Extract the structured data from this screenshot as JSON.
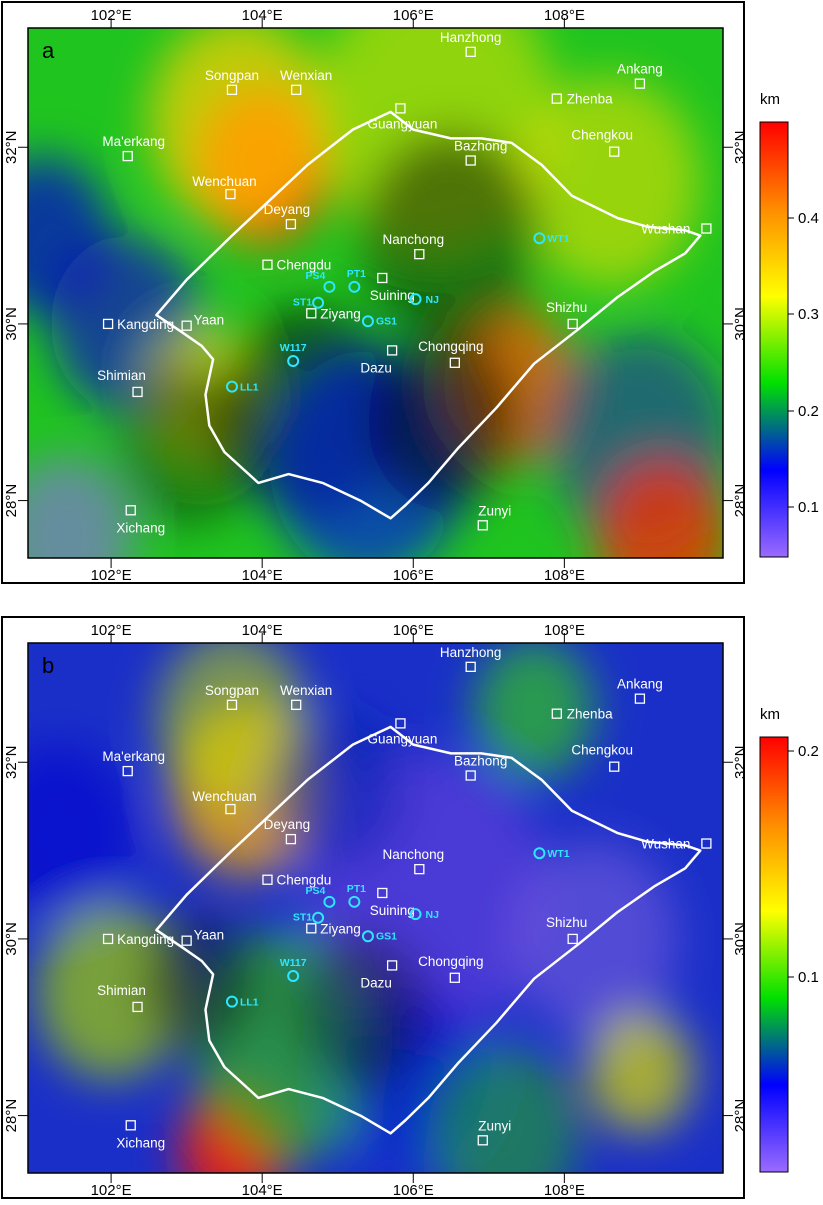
{
  "panels": [
    {
      "letter": "a",
      "colorbar": {
        "unit": "km",
        "ticks": [
          "0.4",
          "0.3",
          "0.2",
          "0.1"
        ],
        "colors": [
          "#ff0000",
          "#ff8c00",
          "#ffff00",
          "#00e000",
          "#0000ff",
          "#9b6bff"
        ]
      },
      "blobs": [
        {
          "x": 104.0,
          "y": 31.8,
          "r": 0.9,
          "c": "#ff3000",
          "o": 0.9
        },
        {
          "x": 103.7,
          "y": 32.3,
          "r": 1.2,
          "c": "#ffd000",
          "o": 0.7
        },
        {
          "x": 106.3,
          "y": 32.4,
          "r": 1.6,
          "c": "#d8e000",
          "o": 0.6
        },
        {
          "x": 108.6,
          "y": 31.6,
          "r": 1.2,
          "c": "#e8e000",
          "o": 0.6
        },
        {
          "x": 101.1,
          "y": 31.0,
          "r": 0.9,
          "c": "#0000d0",
          "o": 0.7
        },
        {
          "x": 102.2,
          "y": 30.0,
          "r": 1.0,
          "c": "#1010c0",
          "o": 0.7
        },
        {
          "x": 103.2,
          "y": 29.2,
          "r": 0.8,
          "c": "#ffe000",
          "o": 0.6
        },
        {
          "x": 104.6,
          "y": 29.0,
          "r": 1.2,
          "c": "#000000",
          "o": 0.55
        },
        {
          "x": 105.4,
          "y": 28.4,
          "r": 1.3,
          "c": "#0010f0",
          "o": 0.65
        },
        {
          "x": 107.3,
          "y": 29.3,
          "r": 0.9,
          "c": "#ff5000",
          "o": 0.7
        },
        {
          "x": 106.4,
          "y": 28.9,
          "r": 1.0,
          "c": "#000000",
          "o": 0.5
        },
        {
          "x": 109.0,
          "y": 28.7,
          "r": 1.2,
          "c": "#2020b0",
          "o": 0.55
        },
        {
          "x": 109.3,
          "y": 27.6,
          "r": 0.9,
          "c": "#ff2a00",
          "o": 0.75
        },
        {
          "x": 101.4,
          "y": 27.6,
          "r": 0.9,
          "c": "#8a70e0",
          "o": 0.65
        },
        {
          "x": 106.5,
          "y": 31.0,
          "r": 1.2,
          "c": "#000000",
          "o": 0.45
        },
        {
          "x": 103.0,
          "y": 28.6,
          "r": 0.9,
          "c": "#000000",
          "o": 0.4
        }
      ]
    },
    {
      "letter": "b",
      "colorbar": {
        "unit": "km",
        "ticks": [
          "0.2",
          "0.1"
        ],
        "colors": [
          "#ff0000",
          "#ff8c00",
          "#ffff00",
          "#00e000",
          "#0000ff",
          "#9b6bff"
        ]
      },
      "blobs": [
        {
          "x": 103.8,
          "y": 31.7,
          "r": 1.0,
          "c": "#ffb000",
          "o": 0.75
        },
        {
          "x": 103.6,
          "y": 32.5,
          "r": 1.0,
          "c": "#c0e000",
          "o": 0.55
        },
        {
          "x": 101.3,
          "y": 31.2,
          "r": 1.0,
          "c": "#0000d0",
          "o": 0.6
        },
        {
          "x": 102.0,
          "y": 29.4,
          "r": 1.0,
          "c": "#a0d000",
          "o": 0.7
        },
        {
          "x": 103.6,
          "y": 27.6,
          "r": 0.7,
          "c": "#ff1a00",
          "o": 0.85
        },
        {
          "x": 104.4,
          "y": 28.8,
          "r": 1.3,
          "c": "#30d000",
          "o": 0.6
        },
        {
          "x": 106.2,
          "y": 30.5,
          "r": 1.6,
          "c": "#6a40e0",
          "o": 0.6
        },
        {
          "x": 107.6,
          "y": 32.6,
          "r": 0.8,
          "c": "#30e000",
          "o": 0.6
        },
        {
          "x": 108.4,
          "y": 30.0,
          "r": 1.1,
          "c": "#8060e0",
          "o": 0.55
        },
        {
          "x": 109.0,
          "y": 28.5,
          "r": 0.7,
          "c": "#e0e000",
          "o": 0.7
        },
        {
          "x": 106.0,
          "y": 28.5,
          "r": 1.0,
          "c": "#0010d0",
          "o": 0.55
        },
        {
          "x": 105.0,
          "y": 31.7,
          "r": 0.9,
          "c": "#0020b0",
          "o": 0.5
        },
        {
          "x": 103.2,
          "y": 29.5,
          "r": 0.8,
          "c": "#000000",
          "o": 0.4
        },
        {
          "x": 105.3,
          "y": 29.2,
          "r": 0.9,
          "c": "#000000",
          "o": 0.35
        },
        {
          "x": 107.2,
          "y": 27.8,
          "r": 1.0,
          "c": "#20c000",
          "o": 0.5
        }
      ]
    }
  ],
  "axes": {
    "lon_ticks": [
      "102°E",
      "104°E",
      "106°E",
      "108°E"
    ],
    "lat_ticks": [
      "32°N",
      "30°N",
      "28°N"
    ]
  },
  "cities": [
    {
      "name": "Hanzhong",
      "lon": 106.76,
      "lat": 33.08
    },
    {
      "name": "Ankang",
      "lon": 109.0,
      "lat": 32.72
    },
    {
      "name": "Songpan",
      "lon": 103.6,
      "lat": 32.65
    },
    {
      "name": "Wenxian",
      "lon": 104.45,
      "lat": 32.65
    },
    {
      "name": "Zhenba",
      "lon": 107.9,
      "lat": 32.55
    },
    {
      "name": "Guangyuan",
      "lon": 105.83,
      "lat": 32.44
    },
    {
      "name": "Ma'erkang",
      "lon": 102.22,
      "lat": 31.9
    },
    {
      "name": "Chengkou",
      "lon": 108.66,
      "lat": 31.95
    },
    {
      "name": "Bazhong",
      "lon": 106.76,
      "lat": 31.85
    },
    {
      "name": "Wenchuan",
      "lon": 103.58,
      "lat": 31.47
    },
    {
      "name": "Deyang",
      "lon": 104.38,
      "lat": 31.13
    },
    {
      "name": "Wushan",
      "lon": 109.88,
      "lat": 31.08
    },
    {
      "name": "Chengdu",
      "lon": 104.07,
      "lat": 30.67
    },
    {
      "name": "Nanchong",
      "lon": 106.08,
      "lat": 30.79
    },
    {
      "name": "Suining",
      "lon": 105.59,
      "lat": 30.52
    },
    {
      "name": "Kangding",
      "lon": 101.96,
      "lat": 30.0
    },
    {
      "name": "Yaan",
      "lon": 103.0,
      "lat": 29.98
    },
    {
      "name": "Ziyang",
      "lon": 104.65,
      "lat": 30.12
    },
    {
      "name": "Shizhu",
      "lon": 108.11,
      "lat": 30.0
    },
    {
      "name": "Chongqing",
      "lon": 106.55,
      "lat": 29.56
    },
    {
      "name": "Dazu",
      "lon": 105.72,
      "lat": 29.7
    },
    {
      "name": "Shimian",
      "lon": 102.35,
      "lat": 29.23
    },
    {
      "name": "Xichang",
      "lon": 102.26,
      "lat": 27.89
    },
    {
      "name": "Zunyi",
      "lon": 106.92,
      "lat": 27.72
    }
  ],
  "wells": [
    {
      "name": "PS4",
      "lon": 104.89,
      "lat": 30.42
    },
    {
      "name": "PT1",
      "lon": 105.22,
      "lat": 30.42
    },
    {
      "name": "ST1",
      "lon": 104.74,
      "lat": 30.24
    },
    {
      "name": "NJ",
      "lon": 106.03,
      "lat": 30.28
    },
    {
      "name": "GS1",
      "lon": 105.4,
      "lat": 30.03
    },
    {
      "name": "WT1",
      "lon": 107.67,
      "lat": 30.97
    },
    {
      "name": "W117",
      "lon": 104.41,
      "lat": 29.58
    },
    {
      "name": "LL1",
      "lon": 103.6,
      "lat": 29.29
    }
  ],
  "basin_outline": [
    [
      102.6,
      30.1
    ],
    [
      103.0,
      30.5
    ],
    [
      103.6,
      31.0
    ],
    [
      104.1,
      31.4
    ],
    [
      104.6,
      31.8
    ],
    [
      105.2,
      32.2
    ],
    [
      105.7,
      32.4
    ],
    [
      106.0,
      32.2
    ],
    [
      106.5,
      32.1
    ],
    [
      106.9,
      32.1
    ],
    [
      107.3,
      32.05
    ],
    [
      107.7,
      31.8
    ],
    [
      108.1,
      31.45
    ],
    [
      108.7,
      31.2
    ],
    [
      109.1,
      31.1
    ],
    [
      109.6,
      31.06
    ],
    [
      109.8,
      31.0
    ],
    [
      109.6,
      30.8
    ],
    [
      109.2,
      30.6
    ],
    [
      108.7,
      30.3
    ],
    [
      108.2,
      29.95
    ],
    [
      107.6,
      29.55
    ],
    [
      107.1,
      29.05
    ],
    [
      106.6,
      28.6
    ],
    [
      106.2,
      28.2
    ],
    [
      105.9,
      27.95
    ],
    [
      105.7,
      27.8
    ],
    [
      105.3,
      28.0
    ],
    [
      104.8,
      28.2
    ],
    [
      104.35,
      28.3
    ],
    [
      103.95,
      28.2
    ],
    [
      103.5,
      28.55
    ],
    [
      103.3,
      28.85
    ],
    [
      103.25,
      29.2
    ],
    [
      103.35,
      29.6
    ],
    [
      103.2,
      29.75
    ],
    [
      102.95,
      29.9
    ],
    [
      102.6,
      30.1
    ]
  ]
}
